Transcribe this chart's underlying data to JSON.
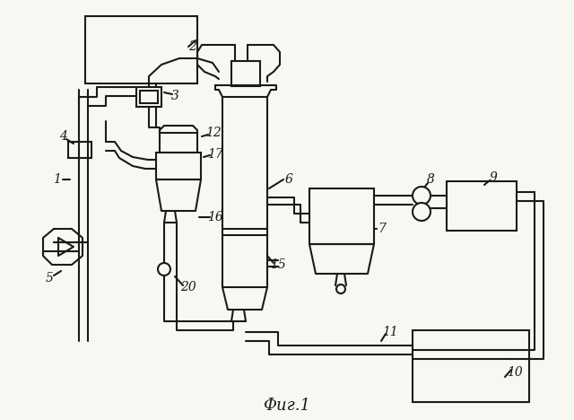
{
  "bg_color": "#f8f7f2",
  "line_color": "#1a1a1a",
  "title": "Фиг.1",
  "lw": 1.5,
  "lw_thin": 1.0
}
